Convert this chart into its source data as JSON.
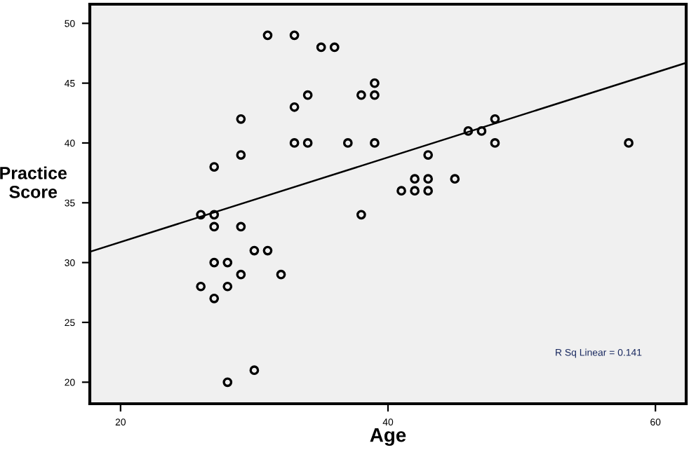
{
  "chart_data": {
    "type": "scatter",
    "xlabel": "Age",
    "ylabel": "Practice\nScore",
    "xlim": [
      17.7,
      62.3
    ],
    "ylim": [
      18.2,
      51.6
    ],
    "xticks": [
      20,
      40,
      60
    ],
    "yticks": [
      20,
      25,
      30,
      35,
      40,
      45,
      50
    ],
    "grid": false,
    "marker": "circle",
    "annotations": [
      "R Sq Linear = 0.141"
    ],
    "series": [
      {
        "color": "#000000",
        "x": [
          31,
          33,
          35,
          36,
          39,
          34,
          38,
          39,
          33,
          29,
          33,
          34,
          37,
          39,
          29,
          27,
          26,
          27,
          38,
          27,
          29,
          30,
          31,
          27,
          28,
          29,
          32,
          26,
          28,
          27,
          30,
          28,
          46,
          47,
          48,
          48,
          43,
          42,
          43,
          45,
          41,
          42,
          43,
          58
        ],
        "values": [
          49,
          49,
          48,
          48,
          45,
          44,
          44,
          44,
          43,
          42,
          40,
          40,
          40,
          40,
          39,
          38,
          34,
          34,
          34,
          33,
          33,
          31,
          31,
          30,
          30,
          29,
          29,
          28,
          28,
          27,
          21,
          20,
          41,
          41,
          42,
          40,
          39,
          37,
          37,
          37,
          36,
          36,
          36,
          40
        ]
      },
      {
        "type": "line",
        "marker": "none",
        "color": "#000000",
        "x": [
          17.7,
          62.3
        ],
        "values": [
          30.9,
          46.7
        ]
      }
    ]
  }
}
